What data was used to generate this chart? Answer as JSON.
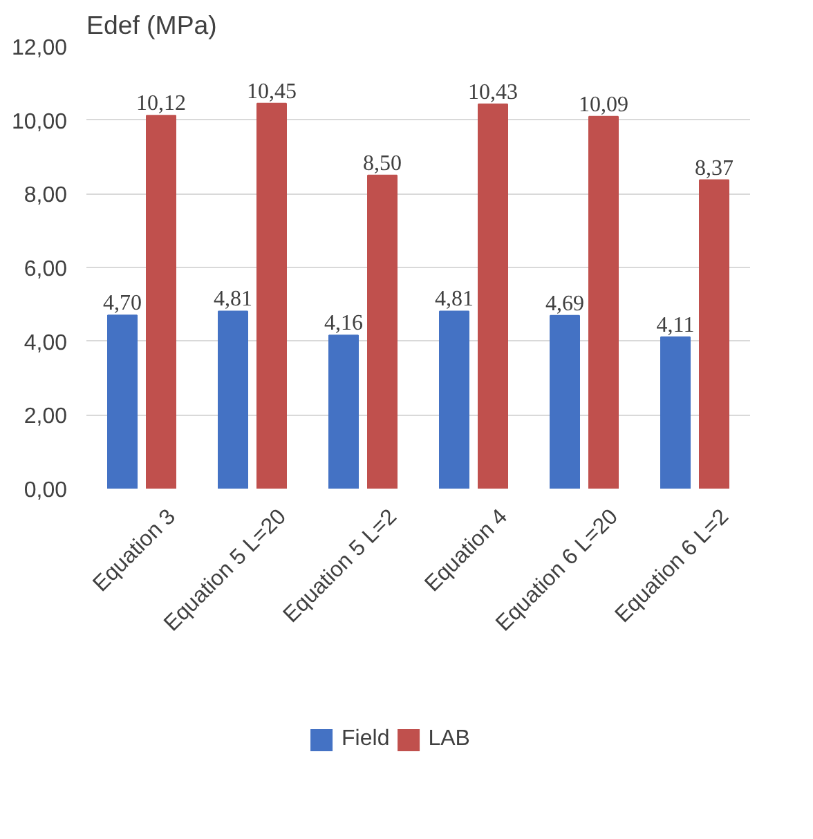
{
  "chart_data": {
    "type": "bar",
    "ylabel": "Edef (MPa)",
    "categories": [
      "Equation 3",
      "Equation 5 L=20",
      "Equation 5 L=2",
      "Equation 4",
      "Equation 6 L=20",
      "Equation 6 L=2"
    ],
    "series": [
      {
        "name": "Field",
        "color": "#4472c4",
        "values": [
          4.7,
          4.81,
          4.16,
          4.81,
          4.69,
          4.11
        ],
        "value_labels": [
          "4,70",
          "4,81",
          "4,16",
          "4,81",
          "4,69",
          "4,11"
        ]
      },
      {
        "name": "LAB",
        "color": "#c0504d",
        "values": [
          10.12,
          10.45,
          8.5,
          10.43,
          10.09,
          8.37
        ],
        "value_labels": [
          "10,12",
          "10,45",
          "8,50",
          "10,43",
          "10,09",
          "8,37"
        ]
      }
    ],
    "ylim": [
      0,
      12
    ],
    "yticks": [
      {
        "value": 0,
        "label": "0,00"
      },
      {
        "value": 2,
        "label": "2,00"
      },
      {
        "value": 4,
        "label": "4,00"
      },
      {
        "value": 6,
        "label": "6,00"
      },
      {
        "value": 8,
        "label": "8,00"
      },
      {
        "value": 10,
        "label": "10,00"
      },
      {
        "value": 12,
        "label": "12,00"
      }
    ],
    "grid": "y",
    "legend": "bottom"
  }
}
